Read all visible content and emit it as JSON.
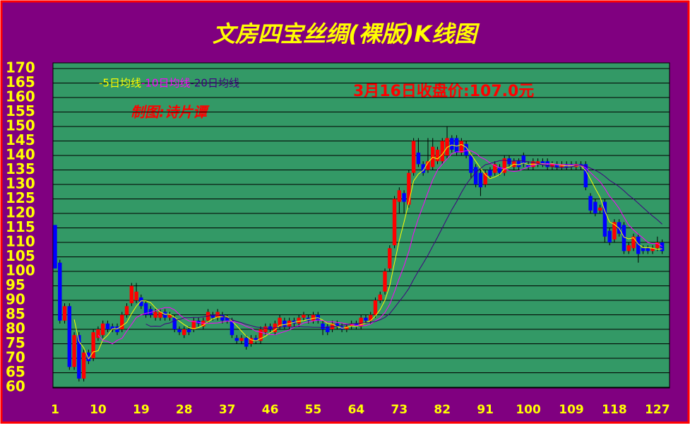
{
  "chart_data": {
    "type": "candlestick",
    "title": "文房四宝丝绸(裸版)K线图",
    "annotation": "3月16日收盘价:107.0元",
    "credit": "制图:诗片谭",
    "up_color": "#ff0000",
    "down_color": "#0000ff",
    "wick_color": "#000000",
    "grid": true,
    "ylim": [
      60,
      170
    ],
    "yticks": [
      60,
      65,
      70,
      75,
      80,
      85,
      90,
      95,
      100,
      105,
      110,
      115,
      120,
      125,
      130,
      135,
      140,
      145,
      150,
      155,
      160,
      165,
      170
    ],
    "categories": [
      1,
      null,
      null,
      null,
      null,
      null,
      null,
      null,
      null,
      10,
      null,
      null,
      null,
      null,
      null,
      null,
      null,
      null,
      19,
      null,
      null,
      null,
      null,
      null,
      null,
      null,
      null,
      28,
      null,
      null,
      null,
      null,
      null,
      null,
      null,
      null,
      37,
      null,
      null,
      null,
      null,
      null,
      null,
      null,
      null,
      46,
      null,
      null,
      null,
      null,
      null,
      null,
      null,
      null,
      55,
      null,
      null,
      null,
      null,
      null,
      null,
      null,
      null,
      64,
      null,
      null,
      null,
      null,
      null,
      null,
      null,
      null,
      73,
      null,
      null,
      null,
      null,
      null,
      null,
      null,
      null,
      82,
      null,
      null,
      null,
      null,
      null,
      null,
      null,
      null,
      91,
      null,
      null,
      null,
      null,
      null,
      null,
      null,
      null,
      100,
      null,
      null,
      null,
      null,
      null,
      null,
      null,
      null,
      109,
      null,
      null,
      null,
      null,
      null,
      null,
      null,
      null,
      118,
      null,
      null,
      null,
      null,
      null,
      null,
      null,
      null,
      127,
      null
    ],
    "open": [
      116,
      103,
      83,
      88,
      67,
      78,
      63,
      72,
      70,
      77,
      78,
      82,
      81,
      81,
      80,
      85,
      89,
      90,
      91,
      89,
      87,
      84,
      84,
      86,
      84,
      84,
      80,
      78,
      80,
      80,
      83,
      81,
      83,
      85,
      84,
      85,
      84,
      83,
      77,
      76,
      77,
      75,
      77,
      76,
      79,
      81,
      79,
      81,
      83,
      81,
      83,
      82,
      84,
      84,
      83,
      85,
      82,
      81,
      80,
      82,
      81,
      80,
      81,
      82,
      81,
      84,
      83,
      85,
      90,
      93,
      101,
      109,
      124,
      127,
      123,
      134,
      141,
      137,
      135,
      136,
      138,
      138,
      140,
      146,
      146,
      141,
      144,
      140,
      136,
      134,
      130,
      135,
      134,
      136,
      134,
      139,
      136,
      138,
      140,
      137,
      136,
      137,
      138,
      138,
      136,
      137,
      136,
      137,
      137,
      136,
      137,
      137,
      126,
      124,
      121,
      124,
      114,
      111,
      117,
      116,
      107,
      108,
      112,
      108,
      108,
      107,
      108,
      110
    ],
    "high": [
      116,
      104,
      89,
      89,
      79,
      79,
      73,
      73,
      80,
      81,
      83,
      83,
      82,
      82,
      86,
      89,
      96,
      96,
      92,
      90,
      88,
      87,
      87,
      87,
      86,
      85,
      81,
      81,
      81,
      84,
      84,
      84,
      87,
      86,
      87,
      86,
      85,
      84,
      78,
      78,
      78,
      78,
      78,
      81,
      82,
      82,
      83,
      85,
      84,
      84,
      84,
      85,
      86,
      85,
      86,
      86,
      83,
      82,
      83,
      83,
      82,
      82,
      83,
      83,
      85,
      85,
      86,
      91,
      93,
      101,
      109,
      126,
      129,
      128,
      135,
      146,
      146,
      138,
      146,
      146,
      143,
      146,
      150,
      147,
      147,
      146,
      145,
      141,
      137,
      135,
      135,
      136,
      138,
      137,
      140,
      140,
      139,
      139,
      141,
      138,
      139,
      139,
      139,
      139,
      138,
      138,
      138,
      138,
      138,
      138,
      138,
      138,
      127,
      125,
      123,
      125,
      115,
      118,
      118,
      117,
      110,
      113,
      113,
      109,
      109,
      109,
      112,
      111
    ],
    "low": [
      101,
      82,
      82,
      66,
      66,
      62,
      62,
      68,
      69,
      76,
      77,
      79,
      79,
      78,
      79,
      84,
      88,
      89,
      87,
      84,
      84,
      83,
      83,
      83,
      83,
      79,
      78,
      77,
      78,
      79,
      81,
      80,
      82,
      83,
      83,
      82,
      82,
      77,
      75,
      75,
      73,
      74,
      75,
      75,
      78,
      79,
      78,
      80,
      80,
      80,
      81,
      81,
      83,
      82,
      82,
      82,
      78,
      78,
      79,
      80,
      79,
      79,
      80,
      80,
      80,
      82,
      82,
      84,
      89,
      92,
      100,
      108,
      120,
      120,
      122,
      133,
      136,
      133,
      134,
      135,
      137,
      137,
      139,
      141,
      140,
      140,
      139,
      132,
      129,
      126,
      129,
      132,
      133,
      133,
      133,
      136,
      135,
      135,
      136,
      135,
      135,
      136,
      136,
      135,
      135,
      135,
      135,
      135,
      135,
      135,
      135,
      128,
      120,
      119,
      120,
      110,
      109,
      110,
      112,
      106,
      106,
      107,
      103,
      106,
      106,
      106,
      107,
      106
    ],
    "close": [
      101,
      83,
      88,
      67,
      78,
      63,
      72,
      69,
      79,
      80,
      82,
      80,
      80,
      79,
      85,
      88,
      95,
      93,
      88,
      85,
      85,
      86,
      86,
      84,
      85,
      80,
      79,
      80,
      79,
      83,
      82,
      83,
      86,
      84,
      86,
      83,
      83,
      78,
      76,
      77,
      74,
      77,
      76,
      80,
      81,
      80,
      82,
      84,
      81,
      83,
      82,
      84,
      85,
      83,
      85,
      83,
      80,
      79,
      82,
      81,
      80,
      81,
      82,
      81,
      84,
      83,
      85,
      90,
      92,
      100,
      108,
      125,
      128,
      124,
      134,
      145,
      137,
      134,
      138,
      143,
      142,
      145,
      146,
      142,
      141,
      145,
      140,
      134,
      130,
      129,
      134,
      133,
      137,
      134,
      139,
      137,
      138,
      136,
      137,
      136,
      138,
      138,
      137,
      136,
      137,
      136,
      137,
      136,
      136,
      137,
      136,
      129,
      121,
      120,
      122,
      112,
      110,
      117,
      113,
      107,
      109,
      112,
      106,
      107,
      107,
      108,
      110,
      107
    ],
    "series": [
      {
        "name": "-5日均线",
        "color": "#ffff00",
        "values": [
          null,
          null,
          null,
          null,
          83.4,
          75.8,
          73.6,
          69.8,
          72.2,
          72.6,
          76.4,
          78,
          80.2,
          80.2,
          81.2,
          82.4,
          85.4,
          88,
          89.8,
          89.8,
          89.2,
          87.4,
          86,
          85.2,
          85.2,
          84.2,
          82.8,
          81.6,
          80.6,
          80.2,
          80.6,
          81.4,
          82.6,
          83.6,
          84.2,
          84.4,
          84.4,
          82.8,
          81.2,
          79.4,
          77.6,
          76.4,
          76,
          76.8,
          77.6,
          78.8,
          79.8,
          81.4,
          81.6,
          82,
          82.4,
          82.8,
          83,
          83.4,
          83.8,
          84,
          83.2,
          82,
          81.8,
          81,
          80.4,
          80.6,
          81.2,
          81,
          81.6,
          82.2,
          83,
          84.6,
          86.8,
          90,
          95,
          103,
          110.6,
          117,
          123.8,
          131.2,
          133.6,
          134.8,
          137.6,
          139.4,
          138.8,
          140.4,
          142.8,
          143.6,
          143.2,
          143.8,
          142.8,
          140.4,
          138,
          135.6,
          133.4,
          132,
          132.6,
          133.4,
          135.4,
          136,
          137,
          136.8,
          137.4,
          136.8,
          137,
          137,
          137.2,
          137,
          137.2,
          136.8,
          136.6,
          136.4,
          136.4,
          136.4,
          136.4,
          134.8,
          131.8,
          128.6,
          125.6,
          120.8,
          117,
          116.2,
          114.8,
          111.8,
          111.2,
          111.6,
          109.4,
          108.2,
          108.2,
          108,
          107.6,
          107.8
        ]
      },
      {
        "name": "-10日均线",
        "color": "#ff00ff",
        "values": [
          null,
          null,
          null,
          null,
          null,
          null,
          null,
          null,
          null,
          78,
          76.1,
          75.8,
          75,
          76.2,
          76.9,
          79.4,
          81.7,
          84.1,
          85,
          85.5,
          85.8,
          86.4,
          87,
          87.5,
          87.5,
          86.7,
          85.1,
          83.8,
          82.9,
          82.7,
          82.4,
          82.1,
          82.1,
          82.1,
          82.2,
          82.5,
          82.9,
          82.7,
          82.4,
          81.8,
          81,
          80.4,
          79.4,
          79,
          78.5,
          78.2,
          78.1,
          78.7,
          79.2,
          79.8,
          80.6,
          81.3,
          82.2,
          82.5,
          82.9,
          83.2,
          83,
          82.5,
          82.6,
          82.4,
          82.2,
          81.9,
          81.6,
          81.4,
          81.3,
          81.3,
          81.8,
          82.9,
          83.9,
          85.8,
          88.6,
          93,
          97.6,
          101.9,
          106.9,
          113.1,
          118.3,
          122.7,
          127.3,
          131.6,
          135,
          137,
          138.8,
          140.6,
          141.3,
          141.3,
          141.6,
          141.6,
          140.8,
          139.4,
          138.6,
          137.4,
          136.5,
          135.7,
          135.5,
          134.7,
          134.5,
          134.7,
          135.4,
          136.1,
          136.5,
          137,
          137,
          137.2,
          137,
          136.9,
          136.8,
          136.8,
          136.7,
          136.8,
          136.6,
          135.7,
          134.1,
          132.5,
          131,
          128.6,
          125.9,
          124,
          121.7,
          118.7,
          116,
          114.3,
          112.8,
          111.5,
          110,
          109.6,
          109.6,
          108.6
        ]
      },
      {
        "name": "-20日均线",
        "color": "#400080",
        "values": [
          null,
          null,
          null,
          null,
          null,
          null,
          null,
          null,
          null,
          null,
          null,
          null,
          null,
          null,
          null,
          null,
          null,
          null,
          null,
          81.8,
          81,
          81.1,
          81,
          81.9,
          82.2,
          83.1,
          83.4,
          84,
          84,
          84.1,
          84.1,
          84.3,
          84.6,
          84.8,
          84.9,
          84.6,
          84,
          83.3,
          82.7,
          82.3,
          81.7,
          81.3,
          80.8,
          80.6,
          80.4,
          80.4,
          80.5,
          80.7,
          80.8,
          80.8,
          80.8,
          80.9,
          80.8,
          80.8,
          80.7,
          80.7,
          80.6,
          80.6,
          80.9,
          81.1,
          81.4,
          81.6,
          81.9,
          82,
          82.1,
          82.3,
          82.4,
          82.7,
          83.3,
          84.1,
          85.4,
          87.5,
          89.6,
          91.7,
          94.1,
          97.2,
          100.1,
          102.8,
          105.6,
          108.7,
          111.8,
          115,
          118.2,
          121.3,
          124.1,
          127.2,
          130,
          132.2,
          134.1,
          135.5,
          136.8,
          137.2,
          137.7,
          138.2,
          138.4,
          138,
          138.1,
          138.2,
          138.1,
          137.8,
          137.6,
          137.2,
          136.8,
          136.5,
          136.3,
          135.8,
          135.7,
          135.8,
          136.1,
          136.5,
          136.6,
          136.4,
          135.6,
          134.9,
          134,
          132.8,
          131.4,
          130.4,
          129.2,
          127.8,
          126.3,
          125,
          123.5,
          122,
          120.5,
          119.1,
          117.8,
          116.3
        ]
      }
    ]
  }
}
